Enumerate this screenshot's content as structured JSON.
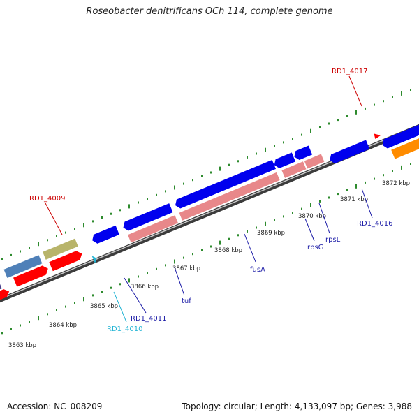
{
  "title": "Roseobacter denitrificans OCh 114, complete genome",
  "footer": {
    "accession": "Accession: NC_008209",
    "info": "Topology: circular; Length: 4,133,097 bp; Genes: 3,988"
  },
  "scale": {
    "ticks": [
      "3863 kbp",
      "3864 kbp",
      "3865 kbp",
      "3866 kbp",
      "3867 kbp",
      "3868 kbp",
      "3869 kbp",
      "3870 kbp",
      "3871 kbp",
      "3872 kbp"
    ]
  },
  "gene_labels": [
    {
      "text": "RD1_4009",
      "color": "#cc0000"
    },
    {
      "text": "RD1_4010",
      "color": "#22b4d4"
    },
    {
      "text": "RD1_4011",
      "color": "#1a1aa6"
    },
    {
      "text": "tuf",
      "color": "#1a1aa6"
    },
    {
      "text": "fusA",
      "color": "#1a1aa6"
    },
    {
      "text": "rpsG",
      "color": "#1a1aa6"
    },
    {
      "text": "rpsL",
      "color": "#1a1aa6"
    },
    {
      "text": "RD1_4016",
      "color": "#1a1aa6"
    },
    {
      "text": "RD1_4017",
      "color": "#cc0000"
    }
  ]
}
